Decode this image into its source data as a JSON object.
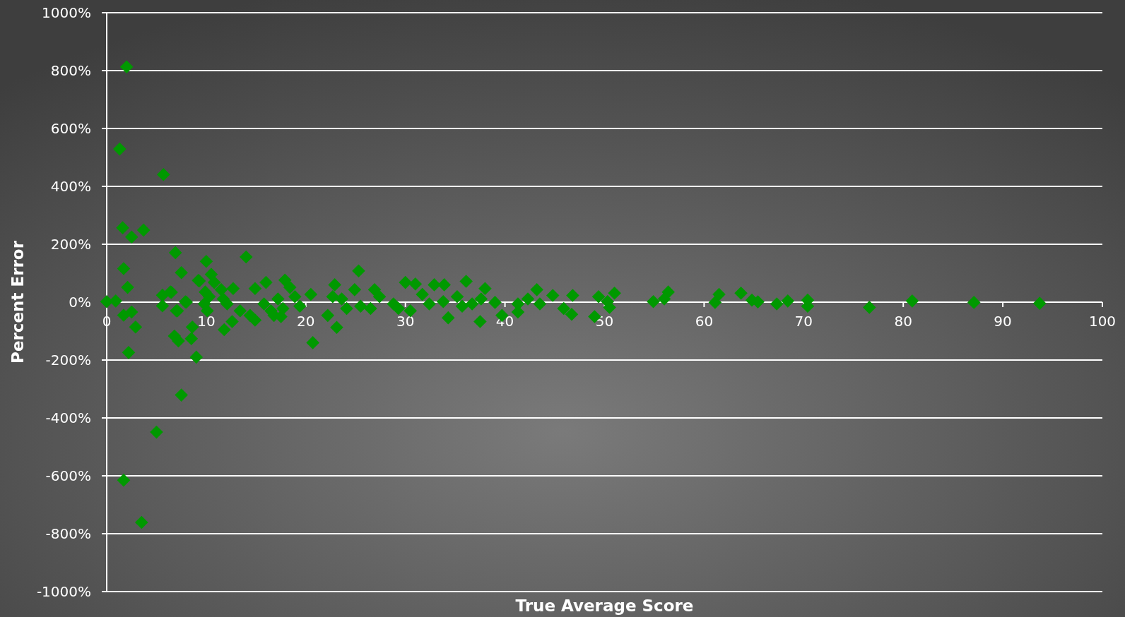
{
  "chart_data": {
    "type": "scatter",
    "xlabel": "True Average Score",
    "ylabel": "Percent Error",
    "xlim": [
      0,
      100
    ],
    "ylim": [
      -1000,
      1000
    ],
    "xticks": [
      0,
      10,
      20,
      30,
      40,
      50,
      60,
      70,
      80,
      90,
      100
    ],
    "yticks": [
      {
        "value": -1000,
        "label": "-1000%"
      },
      {
        "value": -800,
        "label": "-800%"
      },
      {
        "value": -600,
        "label": "-600%"
      },
      {
        "value": -400,
        "label": "-400%"
      },
      {
        "value": -200,
        "label": "-200%"
      },
      {
        "value": 0,
        "label": "0%"
      },
      {
        "value": 200,
        "label": "200%"
      },
      {
        "value": 400,
        "label": "400%"
      },
      {
        "value": 600,
        "label": "600%"
      },
      {
        "value": 800,
        "label": "800%"
      },
      {
        "value": 1000,
        "label": "1000%"
      }
    ],
    "grid": "y",
    "marker": "diamond",
    "series": [
      {
        "color": "#009900",
        "x": [
          2.0,
          1.3,
          5.7,
          1.6,
          2.5,
          3.7,
          6.9,
          1.7,
          2.1,
          7.5,
          14.0,
          10.0,
          9.2,
          0,
          0.9,
          1.7,
          2.5,
          2.9,
          2.2,
          6.8,
          7.2,
          8.5,
          8.6,
          9.0,
          7.5,
          5.0,
          1.7,
          3.5,
          5.6,
          6.5,
          5.6,
          7.1,
          8.0,
          10.5,
          9.3,
          25.3,
          6.4,
          7.0,
          7.9,
          9.9,
          10.1,
          9.8,
          10.8,
          10.3,
          11.5,
          11.7,
          12.1,
          12.7,
          11.8,
          12.6,
          13.4,
          14.4,
          14.9,
          14.9,
          16.0,
          15.8,
          16.5,
          16.8,
          17.5,
          17.9,
          18.4,
          17.2,
          18.9,
          19.4,
          17.7,
          20.5,
          20.7,
          23.1,
          22.2,
          22.9,
          22.7,
          23.6,
          24.1,
          24.9,
          25.5,
          26.5,
          26.9,
          27.4,
          28.8,
          29.3,
          30.0,
          31.0,
          30.5,
          31.7,
          32.4,
          32.9,
          33.9,
          36.1,
          33.8,
          35.2,
          34.3,
          35.7,
          36.7,
          38.0,
          37.6,
          37.5,
          39.0,
          39.7,
          41.3,
          41.3,
          42.3,
          43.2,
          43.5,
          44.8,
          45.9,
          46.8,
          46.7,
          49.0,
          49.4,
          50.3,
          51.0,
          50.5,
          54.9,
          56.4,
          56.0,
          61.1,
          61.5,
          63.7,
          64.8,
          65.4,
          67.3,
          68.4,
          70.4,
          70.4,
          76.6,
          80.9,
          87.1,
          93.7
        ],
        "values": [
          813,
          529,
          441,
          257,
          225,
          249,
          171,
          116,
          51,
          102,
          156,
          141,
          75,
          2,
          4,
          -45,
          -34,
          -86,
          -174,
          -117,
          -134,
          -126,
          -86,
          -190,
          -321,
          -449,
          -615,
          -761,
          24,
          34,
          -13,
          -30,
          0,
          96,
          73,
          108,
          35,
          -30,
          1,
          35,
          -30,
          -6,
          68,
          19,
          43,
          11,
          -6,
          47,
          -95,
          -67,
          -30,
          -46,
          -62,
          47,
          68,
          -6,
          -30,
          -46,
          -50,
          76,
          51,
          11,
          19,
          -14,
          -22,
          27,
          -140,
          -87,
          -46,
          60,
          19,
          11,
          -22,
          43,
          -14,
          -22,
          43,
          19,
          -6,
          -22,
          68,
          63,
          -30,
          27,
          -6,
          60,
          60,
          72,
          2,
          19,
          -54,
          -14,
          -6,
          47,
          11,
          -67,
          -1,
          -46,
          -6,
          -34,
          11,
          43,
          -6,
          23,
          -22,
          23,
          -42,
          -50,
          19,
          2,
          31,
          -18,
          2,
          35,
          11,
          -1,
          27,
          31,
          7,
          1,
          -6,
          4,
          7,
          -14,
          -18,
          4,
          -1,
          -4
        ]
      }
    ]
  }
}
